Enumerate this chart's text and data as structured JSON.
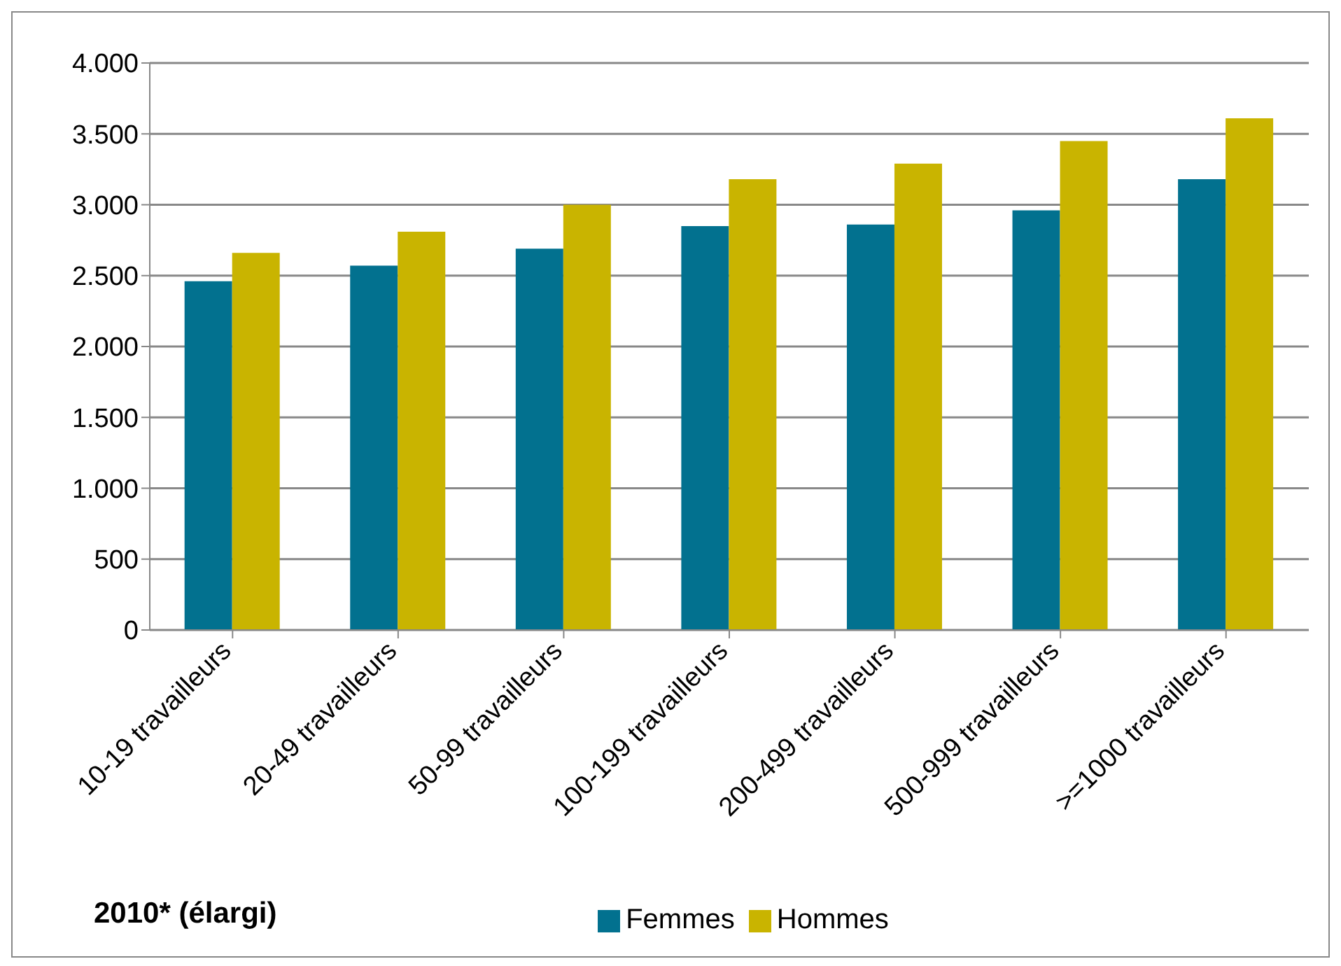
{
  "chart_data": {
    "type": "bar",
    "title": "2010* (élargi)",
    "categories": [
      "10-19 travailleurs",
      "20-49 travailleurs",
      "50-99 travailleurs",
      "100-199 travailleurs",
      "200-499 travailleurs",
      "500-999 travailleurs",
      ">=1000 travailleurs"
    ],
    "series": [
      {
        "name": "Femmes",
        "color": "#02718f",
        "values": [
          2460,
          2570,
          2690,
          2850,
          2860,
          2960,
          3180
        ]
      },
      {
        "name": "Hommes",
        "color": "#c9b400",
        "values": [
          2660,
          2810,
          3000,
          3180,
          3290,
          3450,
          3610
        ]
      }
    ],
    "ylim": [
      0,
      4000
    ],
    "yticks": [
      0,
      500,
      {
        "value": 1000,
        "label": "1.000"
      },
      {
        "value": 1500,
        "label": "1.500"
      },
      {
        "value": 2000,
        "label": "2.000"
      },
      {
        "value": 2500,
        "label": "2.500"
      },
      {
        "value": 3000,
        "label": "3.000"
      },
      {
        "value": 3500,
        "label": "3.500"
      },
      {
        "value": 4000,
        "label": "4.000"
      }
    ],
    "grid": "y",
    "legend": "bottom"
  }
}
